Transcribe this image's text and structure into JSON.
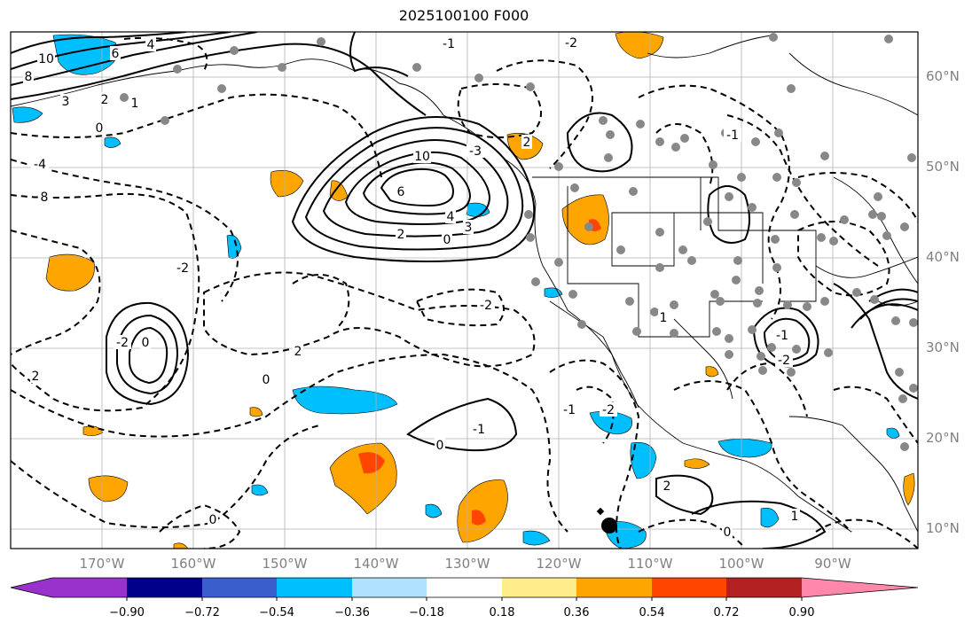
{
  "title": "2025100100 F000",
  "lat_labels": [
    "60°N",
    "50°N",
    "40°N",
    "30°N",
    "20°N",
    "10°N"
  ],
  "lon_labels": [
    "170°W",
    "160°W",
    "150°W",
    "140°W",
    "130°W",
    "120°W",
    "110°W",
    "100°W",
    "90°W"
  ],
  "colorbar": {
    "ticks": [
      "−0.90",
      "−0.72",
      "−0.54",
      "−0.36",
      "−0.18",
      "0.18",
      "0.36",
      "0.54",
      "0.72",
      "0.90"
    ],
    "colors": [
      "#9932cc",
      "#00008b",
      "#3a5fcd",
      "#00bfff",
      "#b0e2ff",
      "#ffffff",
      "#ffec8b",
      "#ffa500",
      "#ff4500",
      "#b22222",
      "#ff88aa"
    ]
  },
  "contour_labels": [
    "10",
    "8",
    "6",
    "4",
    "3",
    "2",
    "1",
    "0",
    "-1",
    "-2",
    "-3",
    "-4",
    "8",
    "10",
    "6",
    "4",
    "3",
    "2",
    "0",
    "-2",
    "-2",
    "2",
    "0",
    "-2",
    "0",
    "2",
    "-1",
    "0",
    "-1",
    "-2",
    "0",
    "2",
    "1",
    "0",
    "1",
    "-1",
    "-2",
    "-1",
    "2"
  ]
}
